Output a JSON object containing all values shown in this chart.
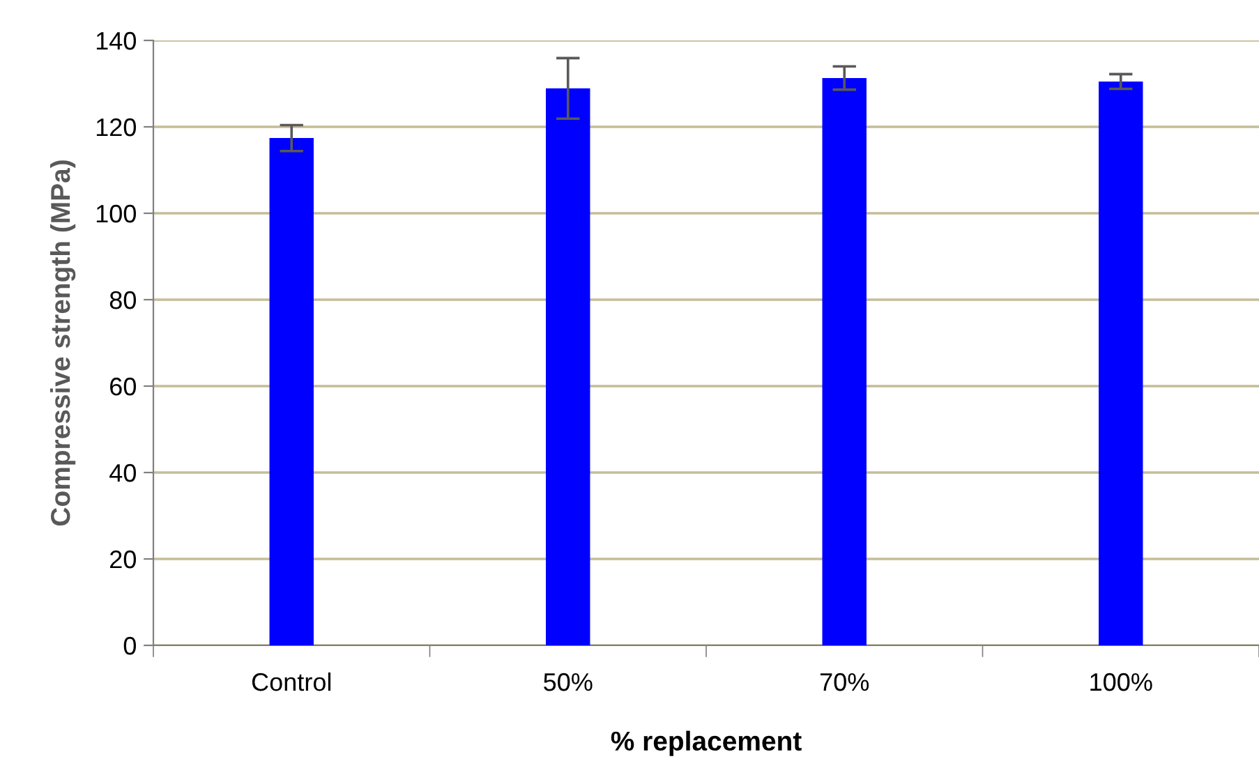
{
  "chart_data": {
    "type": "bar",
    "xlabel": "% replacement",
    "ylabel": "Compressive strength (MPa)",
    "categories": [
      "Control",
      "50%",
      "70%",
      "100%"
    ],
    "series": [
      {
        "color": "#0000ff",
        "values": [
          117.4,
          128.9,
          131.3,
          130.5
        ],
        "errors": [
          3,
          7,
          2.7,
          1.7
        ]
      }
    ],
    "ylim": [
      0,
      140
    ],
    "yticks": [
      0,
      20,
      40,
      60,
      80,
      100,
      120,
      140
    ],
    "grid": "y",
    "legend": false
  }
}
